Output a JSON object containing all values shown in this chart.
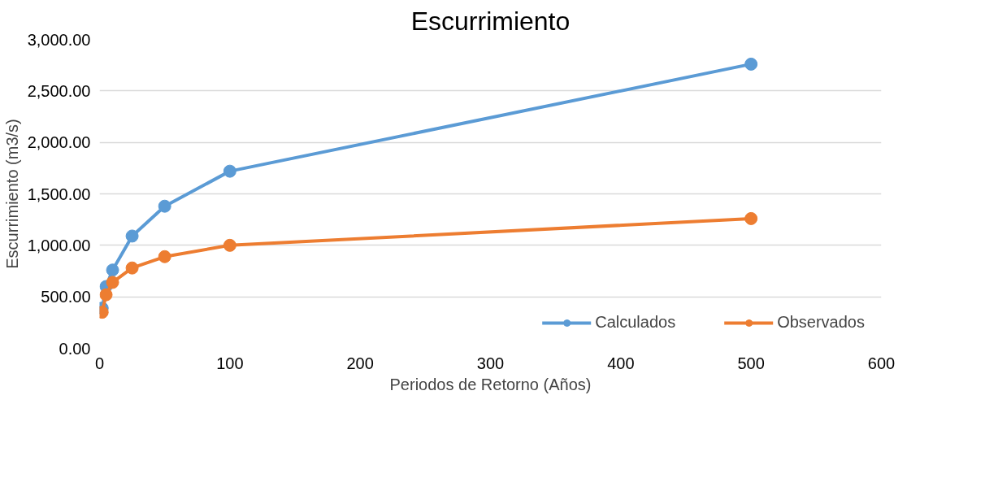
{
  "chart_data": {
    "type": "line",
    "title": "Escurrimiento",
    "xlabel": "Periodos de Retorno (Años)",
    "ylabel": "Escurrimiento (m3/s)",
    "x": [
      2,
      5,
      10,
      25,
      50,
      100,
      500
    ],
    "series": [
      {
        "name": "Calculados",
        "color": "#5b9bd5",
        "values": [
          390,
          600,
          760,
          1090,
          1380,
          1720,
          2760
        ]
      },
      {
        "name": "Observados",
        "color": "#ed7d31",
        "values": [
          350,
          520,
          640,
          780,
          890,
          1000,
          1260
        ]
      }
    ],
    "xlim": [
      0,
      600
    ],
    "xticks": [
      0,
      100,
      200,
      300,
      400,
      500,
      600
    ],
    "ylim": [
      0,
      3000
    ],
    "yticks": [
      {
        "value": 0,
        "label": "0.00"
      },
      {
        "value": 500,
        "label": "500.00"
      },
      {
        "value": 1000,
        "label": "1,000.00"
      },
      {
        "value": 1500,
        "label": "1,500.00"
      },
      {
        "value": 2000,
        "label": "2,000.00"
      },
      {
        "value": 2500,
        "label": "2,500.00"
      },
      {
        "value": 3000,
        "label": "3,000.00"
      }
    ],
    "grid": "y",
    "legend": "bottom right",
    "marker": "circle",
    "line_style": "solid"
  }
}
